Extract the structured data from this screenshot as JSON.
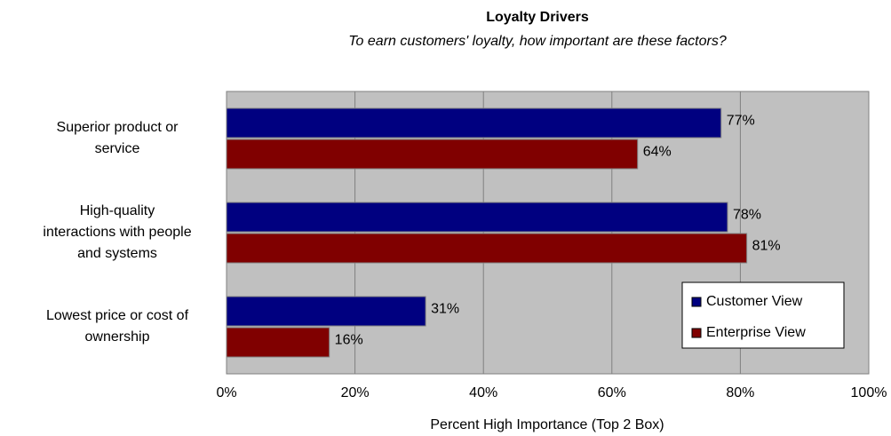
{
  "chart_data": {
    "type": "bar",
    "orientation": "horizontal",
    "title": "Loyalty Drivers",
    "subtitle": "To earn customers' loyalty, how important are these factors?",
    "x_axis_label": "Percent High Importance (Top 2 Box)",
    "categories": [
      "Superior product or service",
      "High-quality interactions with people and systems",
      "Lowest price or cost of ownership"
    ],
    "series": [
      {
        "name": "Customer View",
        "color": "#000080",
        "values": [
          77,
          78,
          31
        ],
        "value_labels": [
          "77%",
          "78%",
          "31%"
        ]
      },
      {
        "name": "Enterprise View",
        "color": "#800000",
        "values": [
          64,
          81,
          16
        ],
        "value_labels": [
          "64%",
          "81%",
          "16%"
        ]
      }
    ],
    "xlim": [
      0,
      100
    ],
    "xticks": [
      {
        "value": 0,
        "label": "0%"
      },
      {
        "value": 20,
        "label": "20%"
      },
      {
        "value": 40,
        "label": "40%"
      },
      {
        "value": 60,
        "label": "60%"
      },
      {
        "value": 80,
        "label": "80%"
      },
      {
        "value": 100,
        "label": "100%"
      }
    ],
    "grid": true,
    "legend": "lower right"
  }
}
